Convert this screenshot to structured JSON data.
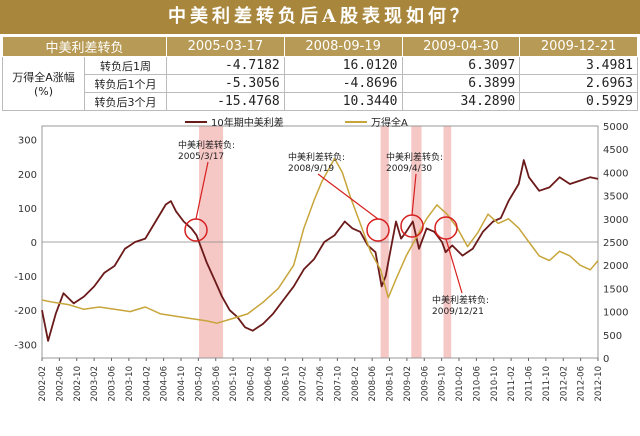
{
  "title": "中美利差转负后A股表现如何？",
  "table": {
    "corner": "中美利差转负",
    "columns": [
      "2005-03-17",
      "2008-09-19",
      "2009-04-30",
      "2009-12-21"
    ],
    "row_group": "万得全A涨幅(%)",
    "rows": [
      {
        "label": "转负后1周",
        "values": [
          "-4.7182",
          "16.0120",
          "6.3097",
          "3.4981"
        ]
      },
      {
        "label": "转负后1个月",
        "values": [
          "-5.3056",
          "-4.8696",
          "6.3899",
          "2.6963"
        ]
      },
      {
        "label": "转负后3个月",
        "values": [
          "-15.4768",
          "10.3440",
          "34.2890",
          "0.5929"
        ]
      }
    ]
  },
  "chart_data": {
    "type": "line",
    "legend_placement": "top",
    "grid": false,
    "y_left": {
      "ticks": [
        -300,
        -200,
        -100,
        0,
        100,
        200,
        300
      ],
      "lim": [
        -340,
        340
      ]
    },
    "y_right": {
      "ticks": [
        0,
        500,
        1000,
        1500,
        2000,
        2500,
        3000,
        3500,
        4000,
        4500,
        5000
      ],
      "lim": [
        0,
        5000
      ]
    },
    "x_ticks": [
      "2002-02",
      "2002-06",
      "2002-10",
      "2003-02",
      "2003-06",
      "2003-10",
      "2004-02",
      "2004-06",
      "2004-10",
      "2005-02",
      "2005-06",
      "2005-10",
      "2006-02",
      "2006-06",
      "2006-10",
      "2007-02",
      "2007-06",
      "2007-10",
      "2008-02",
      "2008-06",
      "2008-10",
      "2009-02",
      "2009-06",
      "2009-10",
      "2010-02",
      "2010-06",
      "2010-10",
      "2011-02",
      "2011-06",
      "2011-10",
      "2012-02",
      "2012-06",
      "2012-10"
    ],
    "series": [
      {
        "name": "10年期中美利差",
        "axis": "left",
        "color": "#6b1a1a",
        "x": [
          2002.08,
          2002.2,
          2002.35,
          2002.5,
          2002.7,
          2002.9,
          2003.1,
          2003.3,
          2003.5,
          2003.7,
          2003.9,
          2004.1,
          2004.3,
          2004.5,
          2004.6,
          2004.7,
          2004.85,
          2005.0,
          2005.1,
          2005.2,
          2005.3,
          2005.45,
          2005.6,
          2005.75,
          2005.9,
          2006.05,
          2006.2,
          2006.4,
          2006.6,
          2006.8,
          2007.0,
          2007.2,
          2007.4,
          2007.6,
          2007.8,
          2008.0,
          2008.15,
          2008.3,
          2008.45,
          2008.6,
          2008.72,
          2008.8,
          2008.9,
          2009.0,
          2009.1,
          2009.2,
          2009.33,
          2009.45,
          2009.6,
          2009.75,
          2009.9,
          2009.97,
          2010.1,
          2010.3,
          2010.5,
          2010.7,
          2010.9,
          2011.05,
          2011.2,
          2011.4,
          2011.5,
          2011.6,
          2011.8,
          2012.0,
          2012.2,
          2012.4,
          2012.6,
          2012.8,
          2012.95
        ],
        "values": [
          -200,
          -290,
          -210,
          -150,
          -180,
          -160,
          -130,
          -90,
          -70,
          -20,
          0,
          10,
          60,
          110,
          120,
          90,
          60,
          40,
          20,
          -20,
          -60,
          -110,
          -160,
          -200,
          -220,
          -250,
          -260,
          -240,
          -210,
          -170,
          -130,
          -80,
          -50,
          0,
          20,
          60,
          40,
          30,
          -10,
          -30,
          -130,
          -100,
          -20,
          60,
          10,
          30,
          60,
          -20,
          40,
          30,
          0,
          -30,
          -10,
          -40,
          -20,
          30,
          60,
          70,
          120,
          170,
          240,
          190,
          150,
          160,
          190,
          170,
          180,
          190,
          185
        ]
      },
      {
        "name": "万得全A",
        "axis": "right",
        "color": "#c7a53a",
        "x": [
          2002.08,
          2002.3,
          2002.6,
          2002.9,
          2003.2,
          2003.5,
          2003.8,
          2004.1,
          2004.4,
          2004.7,
          2005.0,
          2005.3,
          2005.5,
          2005.8,
          2006.1,
          2006.4,
          2006.7,
          2007.0,
          2007.2,
          2007.4,
          2007.55,
          2007.7,
          2007.8,
          2007.95,
          2008.1,
          2008.3,
          2008.5,
          2008.7,
          2008.85,
          2009.0,
          2009.2,
          2009.4,
          2009.6,
          2009.8,
          2010.0,
          2010.2,
          2010.4,
          2010.6,
          2010.8,
          2011.0,
          2011.2,
          2011.4,
          2011.6,
          2011.8,
          2012.0,
          2012.2,
          2012.4,
          2012.6,
          2012.8,
          2012.95
        ],
        "values": [
          1250,
          1200,
          1150,
          1050,
          1100,
          1050,
          1000,
          1100,
          950,
          900,
          850,
          800,
          750,
          850,
          950,
          1200,
          1500,
          2000,
          2800,
          3400,
          3800,
          4100,
          4300,
          4000,
          3500,
          2900,
          2300,
          1900,
          1300,
          1700,
          2200,
          2600,
          3000,
          3300,
          3100,
          2800,
          2400,
          2700,
          3100,
          2900,
          3000,
          2800,
          2500,
          2200,
          2100,
          2300,
          2200,
          2000,
          1900,
          2100
        ]
      }
    ],
    "shaded_periods": [
      [
        2005.15,
        2005.62
      ],
      [
        2008.7,
        2008.86
      ],
      [
        2009.3,
        2009.5
      ],
      [
        2009.93,
        2010.08
      ]
    ],
    "annotations": [
      {
        "text": [
          "中美利差转负:",
          "2005/3/17"
        ],
        "x": 2005.21
      },
      {
        "text": [
          "中美利差转负:",
          "2008/9/19"
        ],
        "x": 2008.72
      },
      {
        "text": [
          "中美利差转负:",
          "2009/4/30"
        ],
        "x": 2009.33
      },
      {
        "text": [
          "中美利差转负:",
          "2009/12/21"
        ],
        "x": 2009.97
      }
    ]
  }
}
